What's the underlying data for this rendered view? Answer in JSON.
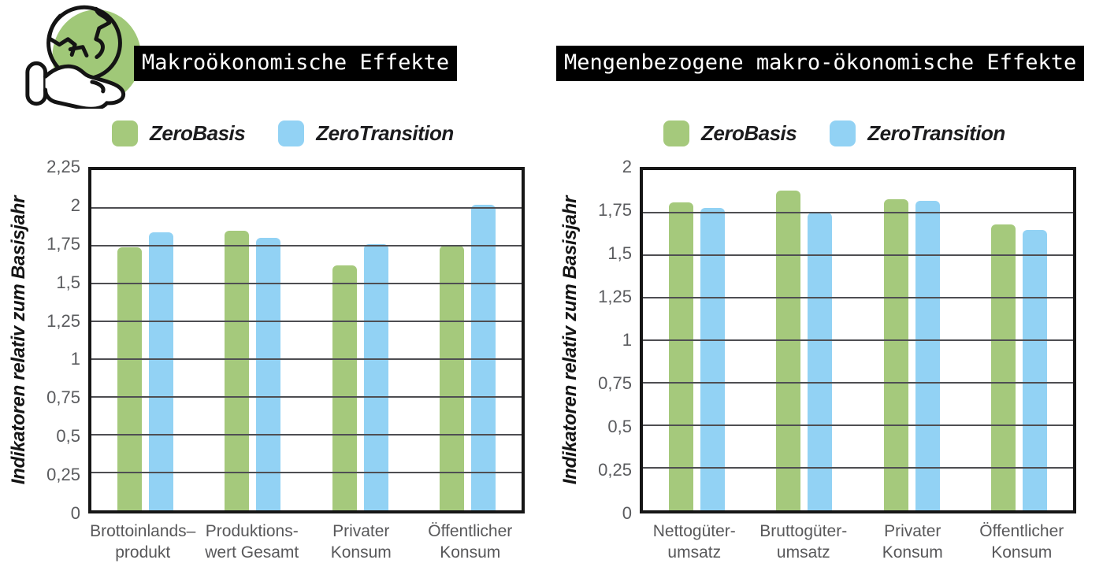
{
  "colors": {
    "green": "#a5c97c",
    "blue": "#92d2f4",
    "grid": "#4e4e52",
    "axis_border": "#161616",
    "tick_text": "#5a5b5e",
    "category_text": "#58585a",
    "title_bg": "#000000",
    "title_text": "#ffffff",
    "icon_circle": "#a0c878"
  },
  "icon": {
    "name": "hand-holding-earth"
  },
  "legend": {
    "items": [
      {
        "label": "ZeroBasis",
        "color": "#a5c97c"
      },
      {
        "label": "ZeroTransition",
        "color": "#92d2f4"
      }
    ]
  },
  "chart_data": [
    {
      "type": "bar",
      "title": "Makroökonomische Effekte",
      "ylabel": "Indikatoren relativ zum Basisjahr",
      "ylim": [
        0,
        2.25
      ],
      "grid": true,
      "legend_position": "top",
      "yticks": [
        {
          "v": 0,
          "label": "0"
        },
        {
          "v": 0.25,
          "label": "0,25"
        },
        {
          "v": 0.5,
          "label": "0,5"
        },
        {
          "v": 0.75,
          "label": "0,75"
        },
        {
          "v": 1,
          "label": "1"
        },
        {
          "v": 1.25,
          "label": "1,25"
        },
        {
          "v": 1.5,
          "label": "1,5"
        },
        {
          "v": 1.75,
          "label": "1,75"
        },
        {
          "v": 2,
          "label": "2"
        },
        {
          "v": 2.25,
          "label": "2,25"
        }
      ],
      "categories": [
        "Brottoinlands–\nprodukt",
        "Produktions-\nwert Gesamt",
        "Privater\nKonsum",
        "Öffentlicher\nKonsum"
      ],
      "series": [
        {
          "name": "ZeroBasis",
          "color": "#a5c97c",
          "values": [
            1.74,
            1.85,
            1.62,
            1.75
          ]
        },
        {
          "name": "ZeroTransition",
          "color": "#92d2f4",
          "values": [
            1.84,
            1.8,
            1.76,
            2.02
          ]
        }
      ]
    },
    {
      "type": "bar",
      "title": "Mengenbezogene makro-ökonomische Effekte",
      "ylabel": "Indikatoren relativ zum Basisjahr",
      "ylim": [
        0,
        2
      ],
      "grid": true,
      "legend_position": "top",
      "yticks": [
        {
          "v": 0,
          "label": "0"
        },
        {
          "v": 0.25,
          "label": "0,25"
        },
        {
          "v": 0.5,
          "label": "0,5"
        },
        {
          "v": 0.75,
          "label": "0,75"
        },
        {
          "v": 1,
          "label": "1"
        },
        {
          "v": 1.25,
          "label": "1,25"
        },
        {
          "v": 1.5,
          "label": "1,5"
        },
        {
          "v": 1.75,
          "label": "1,75"
        },
        {
          "v": 2,
          "label": "2"
        }
      ],
      "categories": [
        "Nettogüter-\numsatz",
        "Bruttogüter-\numsatz",
        "Privater\nKonsum",
        "Öffentlicher\nKonsum"
      ],
      "series": [
        {
          "name": "ZeroBasis",
          "color": "#a5c97c",
          "values": [
            1.81,
            1.88,
            1.83,
            1.68
          ]
        },
        {
          "name": "ZeroTransition",
          "color": "#92d2f4",
          "values": [
            1.78,
            1.75,
            1.82,
            1.65
          ]
        }
      ]
    }
  ]
}
